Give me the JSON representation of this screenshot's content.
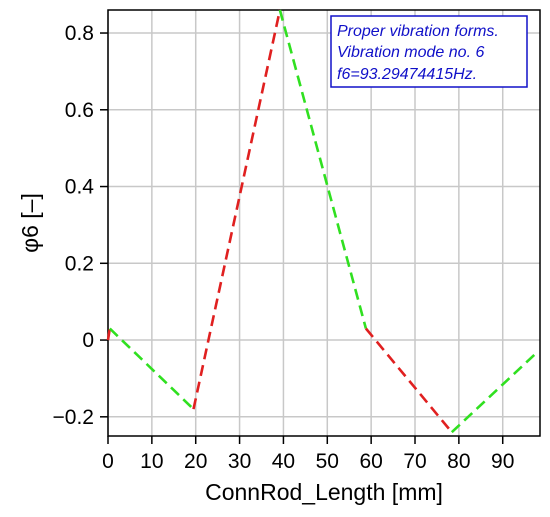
{
  "chart_data": {
    "type": "line",
    "xlabel": "ConnRod_Length [mm]",
    "ylabel": "φ6 [–]",
    "xlim": [
      0,
      98.5
    ],
    "ylim": [
      -0.25,
      0.86
    ],
    "xticks": [
      "0",
      "10",
      "20",
      "30",
      "40",
      "50",
      "60",
      "70",
      "80",
      "90"
    ],
    "yticks": [
      "−0.2",
      "0",
      "0.2",
      "0.4",
      "0.6",
      "0.8"
    ],
    "grid": true,
    "annotation": [
      "Proper vibration forms.",
      "Vibration mode no. 6",
      "f6=93.29474415Hz."
    ],
    "annotation_placement": "top-right",
    "annotation_color": "#1010c8",
    "series": [
      {
        "color": "#e02020",
        "dashed": true,
        "x": [
          0,
          0.4
        ],
        "y": [
          0.0,
          0.03
        ]
      },
      {
        "color": "#30e020",
        "dashed": true,
        "x": [
          0.4,
          19.5
        ],
        "y": [
          0.03,
          -0.18
        ]
      },
      {
        "color": "#e02020",
        "dashed": true,
        "x": [
          19.5,
          39.2
        ],
        "y": [
          -0.18,
          0.86
        ]
      },
      {
        "color": "#30e020",
        "dashed": true,
        "x": [
          39.2,
          58.8
        ],
        "y": [
          0.86,
          0.03
        ]
      },
      {
        "color": "#e02020",
        "dashed": true,
        "x": [
          58.8,
          78.4
        ],
        "y": [
          0.03,
          -0.24
        ]
      },
      {
        "color": "#30e020",
        "dashed": true,
        "x": [
          78.4,
          98.0
        ],
        "y": [
          -0.24,
          -0.03
        ]
      }
    ]
  }
}
